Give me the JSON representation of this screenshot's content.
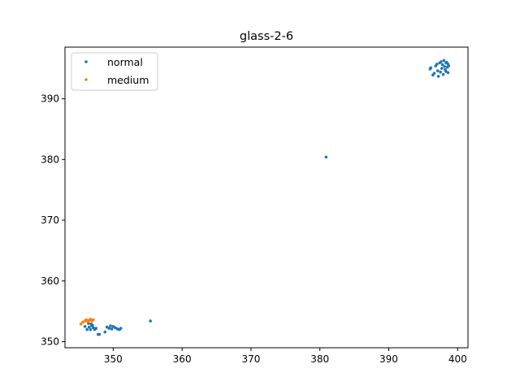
{
  "chart_data": {
    "type": "scatter",
    "title": "glass-2-6",
    "xlabel": "",
    "ylabel": "",
    "xlim": [
      343,
      401.5
    ],
    "ylim": [
      349.0,
      398.5
    ],
    "xticks": [
      350,
      360,
      370,
      380,
      390,
      400
    ],
    "yticks": [
      350,
      360,
      370,
      380,
      390
    ],
    "grid": false,
    "legend_position": "top-left",
    "series": [
      {
        "name": "normal",
        "color": "#1f77b4",
        "points": [
          [
            345.9,
            352.5
          ],
          [
            346.2,
            352.0
          ],
          [
            346.5,
            352.4
          ],
          [
            346.7,
            352.0
          ],
          [
            346.9,
            352.6
          ],
          [
            347.1,
            352.3
          ],
          [
            347.3,
            352.0
          ],
          [
            347.5,
            352.2
          ],
          [
            346.4,
            353.0
          ],
          [
            346.8,
            352.9
          ],
          [
            347.0,
            352.7
          ],
          [
            347.8,
            351.2
          ],
          [
            348.0,
            351.2
          ],
          [
            348.8,
            351.6
          ],
          [
            349.1,
            352.4
          ],
          [
            349.4,
            352.2
          ],
          [
            349.6,
            352.6
          ],
          [
            349.8,
            352.1
          ],
          [
            350.0,
            352.5
          ],
          [
            350.3,
            352.3
          ],
          [
            350.6,
            352.1
          ],
          [
            350.9,
            352.0
          ],
          [
            351.1,
            352.2
          ],
          [
            355.4,
            353.4
          ],
          [
            380.9,
            380.4
          ],
          [
            396.0,
            394.9
          ],
          [
            396.1,
            395.1
          ],
          [
            396.4,
            393.9
          ],
          [
            396.6,
            394.2
          ],
          [
            396.8,
            395.4
          ],
          [
            397.0,
            395.7
          ],
          [
            397.1,
            394.6
          ],
          [
            397.2,
            393.7
          ],
          [
            397.4,
            395.9
          ],
          [
            397.5,
            394.4
          ],
          [
            397.6,
            396.1
          ],
          [
            397.7,
            395.0
          ],
          [
            397.8,
            395.6
          ],
          [
            397.9,
            394.0
          ],
          [
            398.0,
            396.3
          ],
          [
            398.1,
            395.3
          ],
          [
            398.2,
            394.8
          ],
          [
            398.3,
            395.9
          ],
          [
            398.3,
            394.5
          ],
          [
            398.4,
            396.0
          ],
          [
            398.5,
            395.2
          ],
          [
            398.6,
            394.3
          ],
          [
            398.6,
            395.7
          ],
          [
            398.7,
            395.4
          ]
        ]
      },
      {
        "name": "medium",
        "color": "#ff7f0e",
        "points": [
          [
            345.3,
            352.9
          ],
          [
            345.6,
            353.2
          ],
          [
            345.9,
            353.4
          ],
          [
            346.1,
            353.6
          ],
          [
            346.3,
            353.3
          ],
          [
            346.5,
            353.5
          ],
          [
            346.7,
            353.7
          ],
          [
            346.9,
            353.4
          ],
          [
            347.1,
            353.6
          ]
        ]
      }
    ]
  }
}
